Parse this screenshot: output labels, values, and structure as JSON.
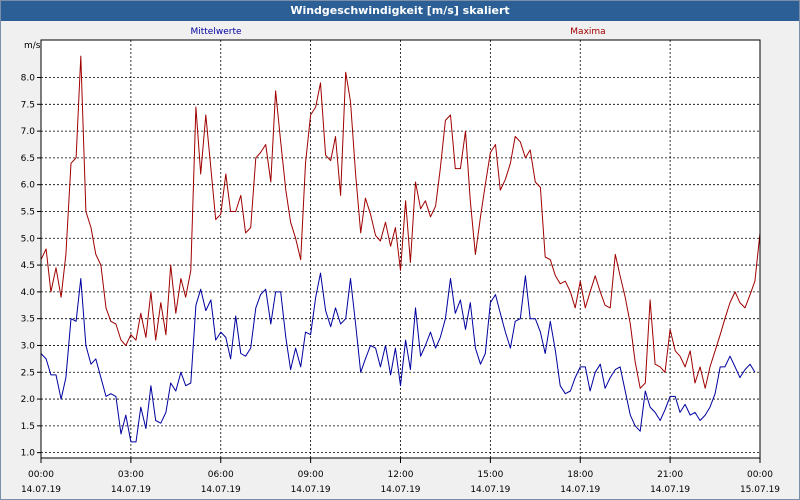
{
  "window": {
    "title": "Windgeschwindigkeit [m/s] skaliert"
  },
  "chart_data": {
    "type": "line",
    "title": "Windgeschwindigkeit [m/s] skaliert",
    "ylabel": "m/s",
    "ylim": [
      0.9,
      8.7
    ],
    "yticks": [
      "1.0",
      "1.5",
      "2.0",
      "2.5",
      "3.0",
      "3.5",
      "4.0",
      "4.5",
      "5.0",
      "5.5",
      "6.0",
      "6.5",
      "7.0",
      "7.5",
      "8.0"
    ],
    "xlim": [
      0,
      24
    ],
    "xticks": [
      {
        "time": "00:00",
        "date": "14.07.19"
      },
      {
        "time": "03:00",
        "date": "14.07.19"
      },
      {
        "time": "06:00",
        "date": "14.07.19"
      },
      {
        "time": "09:00",
        "date": "14.07.19"
      },
      {
        "time": "12:00",
        "date": "14.07.19"
      },
      {
        "time": "15:00",
        "date": "14.07.19"
      },
      {
        "time": "18:00",
        "date": "14.07.19"
      },
      {
        "time": "21:00",
        "date": "14.07.19"
      },
      {
        "time": "00:00",
        "date": "15.07.19"
      }
    ],
    "grid": true,
    "series": [
      {
        "name": "Mittelwerte",
        "color": "#0000a0",
        "points": [
          [
            0.0,
            2.85
          ],
          [
            0.17,
            2.75
          ],
          [
            0.33,
            2.45
          ],
          [
            0.5,
            2.45
          ],
          [
            0.67,
            2.0
          ],
          [
            0.83,
            2.4
          ],
          [
            1.0,
            3.5
          ],
          [
            1.17,
            3.45
          ],
          [
            1.33,
            4.25
          ],
          [
            1.5,
            3.0
          ],
          [
            1.67,
            2.65
          ],
          [
            1.83,
            2.75
          ],
          [
            2.0,
            2.4
          ],
          [
            2.17,
            2.05
          ],
          [
            2.33,
            2.1
          ],
          [
            2.5,
            2.05
          ],
          [
            2.67,
            1.35
          ],
          [
            2.83,
            1.7
          ],
          [
            3.0,
            1.2
          ],
          [
            3.17,
            1.2
          ],
          [
            3.33,
            1.85
          ],
          [
            3.5,
            1.45
          ],
          [
            3.67,
            2.25
          ],
          [
            3.83,
            1.6
          ],
          [
            4.0,
            1.55
          ],
          [
            4.17,
            1.75
          ],
          [
            4.33,
            2.3
          ],
          [
            4.5,
            2.15
          ],
          [
            4.67,
            2.5
          ],
          [
            4.83,
            2.25
          ],
          [
            5.0,
            2.3
          ],
          [
            5.17,
            3.75
          ],
          [
            5.33,
            4.05
          ],
          [
            5.5,
            3.65
          ],
          [
            5.67,
            3.85
          ],
          [
            5.83,
            3.1
          ],
          [
            6.0,
            3.25
          ],
          [
            6.17,
            3.15
          ],
          [
            6.33,
            2.75
          ],
          [
            6.5,
            3.55
          ],
          [
            6.67,
            2.85
          ],
          [
            6.83,
            2.8
          ],
          [
            7.0,
            2.95
          ],
          [
            7.17,
            3.7
          ],
          [
            7.33,
            3.95
          ],
          [
            7.5,
            4.05
          ],
          [
            7.67,
            3.4
          ],
          [
            7.83,
            4.0
          ],
          [
            8.0,
            4.0
          ],
          [
            8.17,
            3.15
          ],
          [
            8.33,
            2.55
          ],
          [
            8.5,
            2.95
          ],
          [
            8.67,
            2.6
          ],
          [
            8.83,
            3.25
          ],
          [
            9.0,
            3.2
          ],
          [
            9.17,
            3.9
          ],
          [
            9.33,
            4.35
          ],
          [
            9.5,
            3.65
          ],
          [
            9.67,
            3.35
          ],
          [
            9.83,
            3.7
          ],
          [
            10.0,
            3.4
          ],
          [
            10.17,
            3.5
          ],
          [
            10.33,
            4.25
          ],
          [
            10.5,
            3.4
          ],
          [
            10.67,
            2.5
          ],
          [
            10.83,
            2.75
          ],
          [
            11.0,
            3.0
          ],
          [
            11.17,
            2.95
          ],
          [
            11.33,
            2.6
          ],
          [
            11.5,
            3.0
          ],
          [
            11.67,
            2.45
          ],
          [
            11.83,
            2.95
          ],
          [
            12.0,
            2.25
          ],
          [
            12.17,
            3.1
          ],
          [
            12.33,
            2.55
          ],
          [
            12.5,
            3.7
          ],
          [
            12.67,
            2.8
          ],
          [
            12.83,
            3.0
          ],
          [
            13.0,
            3.25
          ],
          [
            13.17,
            2.95
          ],
          [
            13.33,
            3.15
          ],
          [
            13.5,
            3.5
          ],
          [
            13.67,
            4.25
          ],
          [
            13.83,
            3.6
          ],
          [
            14.0,
            3.85
          ],
          [
            14.17,
            3.3
          ],
          [
            14.33,
            3.8
          ],
          [
            14.5,
            2.95
          ],
          [
            14.67,
            2.65
          ],
          [
            14.83,
            2.85
          ],
          [
            15.0,
            3.8
          ],
          [
            15.17,
            3.95
          ],
          [
            15.33,
            3.6
          ],
          [
            15.5,
            3.25
          ],
          [
            15.67,
            2.95
          ],
          [
            15.83,
            3.45
          ],
          [
            16.0,
            3.5
          ],
          [
            16.17,
            4.3
          ],
          [
            16.33,
            3.5
          ],
          [
            16.5,
            3.5
          ],
          [
            16.67,
            3.25
          ],
          [
            16.83,
            2.85
          ],
          [
            17.0,
            3.45
          ],
          [
            17.17,
            2.9
          ],
          [
            17.33,
            2.25
          ],
          [
            17.5,
            2.1
          ],
          [
            17.67,
            2.15
          ],
          [
            17.83,
            2.4
          ],
          [
            18.0,
            2.6
          ],
          [
            18.17,
            2.6
          ],
          [
            18.33,
            2.15
          ],
          [
            18.5,
            2.5
          ],
          [
            18.67,
            2.65
          ],
          [
            18.83,
            2.2
          ],
          [
            19.0,
            2.4
          ],
          [
            19.17,
            2.55
          ],
          [
            19.33,
            2.6
          ],
          [
            19.5,
            2.15
          ],
          [
            19.67,
            1.7
          ],
          [
            19.83,
            1.5
          ],
          [
            20.0,
            1.4
          ],
          [
            20.17,
            2.15
          ],
          [
            20.33,
            1.85
          ],
          [
            20.5,
            1.75
          ],
          [
            20.67,
            1.6
          ],
          [
            20.83,
            1.8
          ],
          [
            21.0,
            2.05
          ],
          [
            21.17,
            2.05
          ],
          [
            21.33,
            1.75
          ],
          [
            21.5,
            1.9
          ],
          [
            21.67,
            1.7
          ],
          [
            21.83,
            1.75
          ],
          [
            22.0,
            1.6
          ],
          [
            22.17,
            1.7
          ],
          [
            22.33,
            1.85
          ],
          [
            22.5,
            2.1
          ],
          [
            22.67,
            2.6
          ],
          [
            22.83,
            2.6
          ],
          [
            23.0,
            2.8
          ],
          [
            23.17,
            2.6
          ],
          [
            23.33,
            2.4
          ],
          [
            23.5,
            2.55
          ],
          [
            23.67,
            2.65
          ],
          [
            23.83,
            2.5
          ]
        ]
      },
      {
        "name": "Maxima",
        "color": "#a00000",
        "points": [
          [
            0.0,
            4.6
          ],
          [
            0.17,
            4.8
          ],
          [
            0.33,
            4.0
          ],
          [
            0.5,
            4.45
          ],
          [
            0.67,
            3.9
          ],
          [
            0.83,
            4.7
          ],
          [
            1.0,
            6.4
          ],
          [
            1.17,
            6.5
          ],
          [
            1.33,
            8.4
          ],
          [
            1.5,
            5.5
          ],
          [
            1.67,
            5.2
          ],
          [
            1.83,
            4.7
          ],
          [
            2.0,
            4.5
          ],
          [
            2.17,
            3.7
          ],
          [
            2.33,
            3.45
          ],
          [
            2.5,
            3.4
          ],
          [
            2.67,
            3.1
          ],
          [
            2.83,
            3.0
          ],
          [
            3.0,
            3.2
          ],
          [
            3.17,
            3.1
          ],
          [
            3.33,
            3.6
          ],
          [
            3.5,
            3.15
          ],
          [
            3.67,
            4.0
          ],
          [
            3.83,
            3.1
          ],
          [
            4.0,
            3.8
          ],
          [
            4.17,
            3.2
          ],
          [
            4.33,
            4.5
          ],
          [
            4.5,
            3.6
          ],
          [
            4.67,
            4.25
          ],
          [
            4.83,
            3.9
          ],
          [
            5.0,
            4.4
          ],
          [
            5.17,
            7.45
          ],
          [
            5.33,
            6.2
          ],
          [
            5.5,
            7.3
          ],
          [
            5.67,
            6.3
          ],
          [
            5.83,
            5.35
          ],
          [
            6.0,
            5.45
          ],
          [
            6.17,
            6.2
          ],
          [
            6.33,
            5.5
          ],
          [
            6.5,
            5.5
          ],
          [
            6.67,
            5.8
          ],
          [
            6.83,
            5.1
          ],
          [
            7.0,
            5.2
          ],
          [
            7.17,
            6.5
          ],
          [
            7.33,
            6.6
          ],
          [
            7.5,
            6.75
          ],
          [
            7.67,
            6.05
          ],
          [
            7.83,
            7.75
          ],
          [
            8.0,
            6.8
          ],
          [
            8.17,
            5.9
          ],
          [
            8.33,
            5.3
          ],
          [
            8.5,
            5.0
          ],
          [
            8.67,
            4.6
          ],
          [
            8.83,
            6.4
          ],
          [
            9.0,
            7.3
          ],
          [
            9.17,
            7.45
          ],
          [
            9.33,
            7.9
          ],
          [
            9.5,
            6.55
          ],
          [
            9.67,
            6.45
          ],
          [
            9.83,
            6.9
          ],
          [
            10.0,
            5.8
          ],
          [
            10.17,
            8.1
          ],
          [
            10.33,
            7.55
          ],
          [
            10.5,
            6.2
          ],
          [
            10.67,
            5.1
          ],
          [
            10.83,
            5.75
          ],
          [
            11.0,
            5.45
          ],
          [
            11.17,
            5.05
          ],
          [
            11.33,
            4.95
          ],
          [
            11.5,
            5.3
          ],
          [
            11.67,
            4.85
          ],
          [
            11.83,
            5.2
          ],
          [
            12.0,
            4.4
          ],
          [
            12.17,
            5.7
          ],
          [
            12.33,
            4.55
          ],
          [
            12.5,
            6.05
          ],
          [
            12.67,
            5.55
          ],
          [
            12.83,
            5.7
          ],
          [
            13.0,
            5.4
          ],
          [
            13.17,
            5.6
          ],
          [
            13.33,
            6.3
          ],
          [
            13.5,
            7.2
          ],
          [
            13.67,
            7.3
          ],
          [
            13.83,
            6.3
          ],
          [
            14.0,
            6.3
          ],
          [
            14.17,
            7.0
          ],
          [
            14.33,
            5.7
          ],
          [
            14.5,
            4.7
          ],
          [
            14.67,
            5.4
          ],
          [
            14.83,
            6.0
          ],
          [
            15.0,
            6.6
          ],
          [
            15.17,
            6.75
          ],
          [
            15.33,
            5.9
          ],
          [
            15.5,
            6.1
          ],
          [
            15.67,
            6.4
          ],
          [
            15.83,
            6.9
          ],
          [
            16.0,
            6.8
          ],
          [
            16.17,
            6.5
          ],
          [
            16.33,
            6.65
          ],
          [
            16.5,
            6.05
          ],
          [
            16.67,
            5.95
          ],
          [
            16.83,
            4.65
          ],
          [
            17.0,
            4.6
          ],
          [
            17.17,
            4.3
          ],
          [
            17.33,
            4.15
          ],
          [
            17.5,
            4.2
          ],
          [
            17.67,
            4.0
          ],
          [
            17.83,
            3.7
          ],
          [
            18.0,
            4.2
          ],
          [
            18.17,
            3.7
          ],
          [
            18.33,
            4.0
          ],
          [
            18.5,
            4.3
          ],
          [
            18.67,
            4.0
          ],
          [
            18.83,
            3.75
          ],
          [
            19.0,
            3.7
          ],
          [
            19.17,
            4.7
          ],
          [
            19.33,
            4.3
          ],
          [
            19.5,
            3.9
          ],
          [
            19.67,
            3.4
          ],
          [
            19.83,
            2.7
          ],
          [
            20.0,
            2.2
          ],
          [
            20.17,
            2.3
          ],
          [
            20.33,
            3.85
          ],
          [
            20.5,
            2.65
          ],
          [
            20.67,
            2.6
          ],
          [
            20.83,
            2.5
          ],
          [
            21.0,
            3.3
          ],
          [
            21.17,
            2.9
          ],
          [
            21.33,
            2.8
          ],
          [
            21.5,
            2.6
          ],
          [
            21.67,
            2.9
          ],
          [
            21.83,
            2.3
          ],
          [
            22.0,
            2.6
          ],
          [
            22.17,
            2.2
          ],
          [
            22.33,
            2.6
          ],
          [
            22.5,
            2.9
          ],
          [
            22.67,
            3.2
          ],
          [
            22.83,
            3.5
          ],
          [
            23.0,
            3.8
          ],
          [
            23.17,
            4.0
          ],
          [
            23.33,
            3.8
          ],
          [
            23.5,
            3.7
          ],
          [
            23.67,
            3.95
          ],
          [
            23.83,
            4.2
          ],
          [
            24.0,
            5.1
          ]
        ]
      }
    ]
  }
}
